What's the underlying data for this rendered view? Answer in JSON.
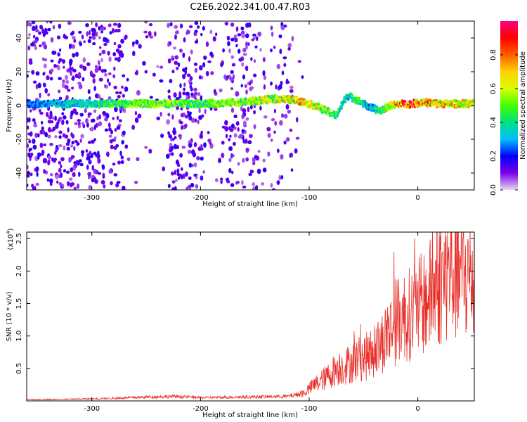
{
  "title": "C2E6.2022.341.00.47.R03",
  "chart_data": [
    {
      "type": "heatmap",
      "xlabel": "Height of straight line (km)",
      "ylabel": "Frequency (Hz)",
      "xlim": [
        -360,
        52
      ],
      "ylim": [
        -50,
        50
      ],
      "xticks": [
        -300,
        -200,
        -100,
        0
      ],
      "yticks": [
        -40,
        -20,
        0,
        20,
        40
      ],
      "colorbar": {
        "label": "Normalized spectral amplitude",
        "range": [
          0,
          1
        ],
        "ticks": [
          "0.0",
          "0.2",
          "0.4",
          "0.6",
          "0.8"
        ],
        "colors": [
          "#e6d8f4",
          "#7a00e6",
          "#0000ff",
          "#00bfff",
          "#00e080",
          "#40ff00",
          "#d8ff00",
          "#ffd000",
          "#ff6000",
          "#ff0000",
          "#ff0080"
        ]
      },
      "ridge": {
        "x": [
          -360,
          -300,
          -250,
          -200,
          -160,
          -130,
          -110,
          -95,
          -85,
          -75,
          -65,
          -55,
          -45,
          -35,
          -25,
          -15,
          -5,
          5,
          20,
          52
        ],
        "y": [
          1,
          1,
          1,
          1,
          2,
          4,
          3,
          0,
          -3,
          -6,
          6,
          3,
          -1,
          -3,
          0,
          1,
          1,
          2,
          1,
          1
        ],
        "amplitude": [
          0.3,
          0.45,
          0.6,
          0.55,
          0.6,
          0.7,
          0.8,
          0.7,
          0.6,
          0.5,
          0.4,
          0.5,
          0.35,
          0.45,
          0.7,
          0.9,
          0.95,
          0.85,
          0.8,
          0.7
        ]
      }
    },
    {
      "type": "line",
      "xlabel": "Height of straight line (km)",
      "ylabel": "SNR (10 * v/v)",
      "yscale_label": "(x10",
      "yscale_exp": "4",
      "xlim": [
        -360,
        52
      ],
      "ylim": [
        0,
        26000
      ],
      "xticks": [
        -300,
        -200,
        -100,
        0
      ],
      "yticks": [
        0.5,
        1.0,
        1.5,
        2.0,
        2.5
      ],
      "ytick_labels": [
        "0.5",
        "1.0",
        "1.5",
        "2.0",
        "2.5"
      ],
      "color": "#e8302a",
      "x": [
        -360,
        -320,
        -280,
        -250,
        -220,
        -200,
        -160,
        -120,
        -105,
        -95,
        -85,
        -75,
        -65,
        -55,
        -45,
        -35,
        -25,
        -15,
        -5,
        5,
        10,
        15,
        20,
        25,
        30,
        35,
        40,
        45,
        52
      ],
      "y": [
        200,
        250,
        400,
        600,
        700,
        500,
        600,
        700,
        1200,
        2500,
        3500,
        5000,
        5500,
        6500,
        7000,
        8500,
        11000,
        13000,
        13500,
        15000,
        16000,
        17000,
        18000,
        19000,
        20000,
        19500,
        19500,
        19000,
        19000
      ]
    }
  ]
}
